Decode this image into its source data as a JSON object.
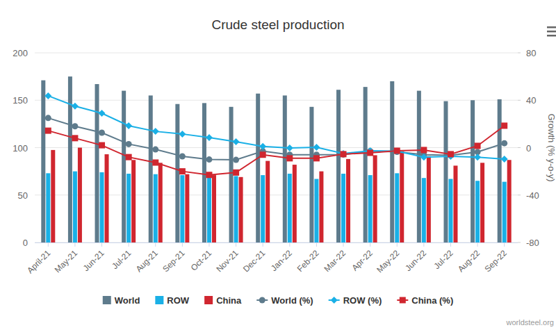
{
  "chart_data": {
    "type": "bar",
    "title": "Crude steel production",
    "y2_label": "Growth (% y-o-y)",
    "source": "worldsteel.org",
    "categories": [
      "April-21",
      "May-21",
      "Jun-21",
      "Jul-21",
      "Aug-21",
      "Sep-21",
      "Oct-21",
      "Nov-21",
      "Dec-21",
      "Jan-22",
      "Feb-22",
      "Mar-22",
      "Apr-22",
      "May-22",
      "Jun-22",
      "Jul-22",
      "Aug-22",
      "Sep-22"
    ],
    "series": [
      {
        "name": "World",
        "type": "bar",
        "color": "#5e7b8c",
        "values": [
          171,
          175,
          167,
          160,
          155,
          146,
          147,
          143,
          157,
          155,
          143,
          161,
          164,
          170,
          160,
          149,
          150,
          151
        ]
      },
      {
        "name": "ROW",
        "type": "bar",
        "color": "#1ab0e6",
        "values": [
          73,
          75,
          74,
          72.5,
          72,
          71,
          70,
          70,
          71,
          72.5,
          67,
          72.5,
          71,
          73,
          68,
          67,
          65,
          64
        ]
      },
      {
        "name": "China",
        "type": "bar",
        "color": "#d0262f",
        "values": [
          97.5,
          100,
          93,
          87,
          84,
          72,
          71,
          69,
          86,
          82,
          75,
          88,
          92,
          96,
          91,
          81,
          84,
          87
        ]
      },
      {
        "name": "World (%)",
        "type": "line",
        "axis": "y2",
        "color": "#5e7b8c",
        "marker": "circle",
        "values": [
          25,
          18,
          12.6,
          3,
          -1.5,
          -7.3,
          -10,
          -10.3,
          -3,
          -6,
          -6,
          -5.8,
          -3,
          -3.5,
          -6,
          -6.5,
          -3.7,
          3.7
        ]
      },
      {
        "name": "ROW (%)",
        "type": "line",
        "axis": "y2",
        "color": "#1ab0e6",
        "marker": "diamond",
        "values": [
          43.7,
          35,
          29,
          18.5,
          13.7,
          11.5,
          8.5,
          5,
          1,
          -0.3,
          0.3,
          -5,
          -2.6,
          -3,
          -8,
          -7.3,
          -8,
          -9.7
        ]
      },
      {
        "name": "China (%)",
        "type": "line",
        "axis": "y2",
        "color": "#d0262f",
        "marker": "square",
        "values": [
          14.3,
          8,
          2,
          -8,
          -12.6,
          -20,
          -23,
          -21,
          -6,
          -9,
          -9,
          -5.5,
          -4.4,
          -2.6,
          -2,
          -5.5,
          1.5,
          18.5
        ]
      }
    ],
    "ylim": [
      0,
      200
    ],
    "yticks": [
      0,
      50,
      100,
      150,
      200
    ],
    "y2lim": [
      -80,
      80
    ],
    "y2ticks": [
      -80,
      -40,
      0,
      40,
      80
    ],
    "grid": true,
    "legend": "bottom"
  }
}
